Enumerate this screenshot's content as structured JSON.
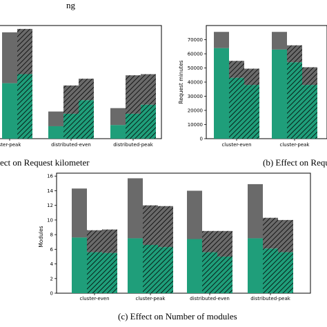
{
  "page": {
    "header_fragment": "ng"
  },
  "colors": {
    "green": "#1f9e7a",
    "gray": "#6a6a6a",
    "hatch": "#000000",
    "axis": "#000000"
  },
  "chart_data": [
    {
      "id": "a",
      "type": "bar",
      "stacked": true,
      "caption": "ect on Request kilometer",
      "categories": [
        "cluster-peak",
        "distributed-even",
        "distributed-peak"
      ],
      "category_labels": [
        "ster-peak",
        "distributed-even",
        "distributed-peak"
      ],
      "ylim": [
        0,
        100
      ],
      "yticks": [],
      "ylabel": "",
      "bars": [
        {
          "category": 0,
          "slot": 0,
          "hatch": false,
          "green": 49,
          "total": 94
        },
        {
          "category": 0,
          "slot": 1,
          "hatch": true,
          "green": 57,
          "total": 97
        },
        {
          "category": 1,
          "slot": -1,
          "hatch": false,
          "green": 11,
          "total": 24
        },
        {
          "category": 1,
          "slot": 0,
          "hatch": true,
          "green": 22,
          "total": 47
        },
        {
          "category": 1,
          "slot": 1,
          "hatch": true,
          "green": 34,
          "total": 53
        },
        {
          "category": 2,
          "slot": -1,
          "hatch": false,
          "green": 12,
          "total": 27
        },
        {
          "category": 2,
          "slot": 0,
          "hatch": true,
          "green": 22,
          "total": 56
        },
        {
          "category": 2,
          "slot": 1,
          "hatch": true,
          "green": 30,
          "total": 57
        }
      ]
    },
    {
      "id": "b",
      "type": "bar",
      "stacked": true,
      "caption": "(b) Effect on Reque",
      "categories": [
        "cluster-even",
        "cluster-peak"
      ],
      "ylim": [
        0,
        80000
      ],
      "yticks": [
        0,
        10000,
        20000,
        30000,
        40000,
        50000,
        60000,
        70000
      ],
      "ylabel": "Request minutes",
      "bars": [
        {
          "category": 0,
          "slot": -1,
          "hatch": false,
          "green": 64000,
          "total": 75500
        },
        {
          "category": 0,
          "slot": 0,
          "hatch": true,
          "green": 43000,
          "total": 55000
        },
        {
          "category": 0,
          "slot": 1,
          "hatch": true,
          "green": 38000,
          "total": 49500
        },
        {
          "category": 1,
          "slot": -1,
          "hatch": false,
          "green": 63000,
          "total": 75500
        },
        {
          "category": 1,
          "slot": 0,
          "hatch": true,
          "green": 54000,
          "total": 66000
        },
        {
          "category": 1,
          "slot": 1,
          "hatch": true,
          "green": 38000,
          "total": 50500
        }
      ]
    },
    {
      "id": "c",
      "type": "bar",
      "stacked": true,
      "caption": "(c) Effect on Number of modules",
      "categories": [
        "cluster-even",
        "cluster-peak",
        "distributed-even",
        "distributed-peak"
      ],
      "ylim": [
        0,
        16.4
      ],
      "yticks": [
        0,
        2,
        4,
        6,
        8,
        10,
        12,
        14,
        16
      ],
      "ylabel": "Modules",
      "bars": [
        {
          "category": 0,
          "slot": -1,
          "hatch": false,
          "green": 7.6,
          "total": 14.3
        },
        {
          "category": 0,
          "slot": 0,
          "hatch": true,
          "green": 5.6,
          "total": 8.6
        },
        {
          "category": 0,
          "slot": 1,
          "hatch": true,
          "green": 5.5,
          "total": 8.7
        },
        {
          "category": 1,
          "slot": -1,
          "hatch": false,
          "green": 7.5,
          "total": 15.7
        },
        {
          "category": 1,
          "slot": 0,
          "hatch": true,
          "green": 6.6,
          "total": 12.0
        },
        {
          "category": 1,
          "slot": 1,
          "hatch": true,
          "green": 6.3,
          "total": 11.9
        },
        {
          "category": 2,
          "slot": -1,
          "hatch": false,
          "green": 7.4,
          "total": 14.0
        },
        {
          "category": 2,
          "slot": 0,
          "hatch": true,
          "green": 5.6,
          "total": 8.5
        },
        {
          "category": 2,
          "slot": 1,
          "hatch": true,
          "green": 5.0,
          "total": 8.5
        },
        {
          "category": 3,
          "slot": -1,
          "hatch": false,
          "green": 7.5,
          "total": 14.9
        },
        {
          "category": 3,
          "slot": 0,
          "hatch": true,
          "green": 6.1,
          "total": 10.3
        },
        {
          "category": 3,
          "slot": 1,
          "hatch": true,
          "green": 5.6,
          "total": 10.0
        }
      ]
    }
  ]
}
